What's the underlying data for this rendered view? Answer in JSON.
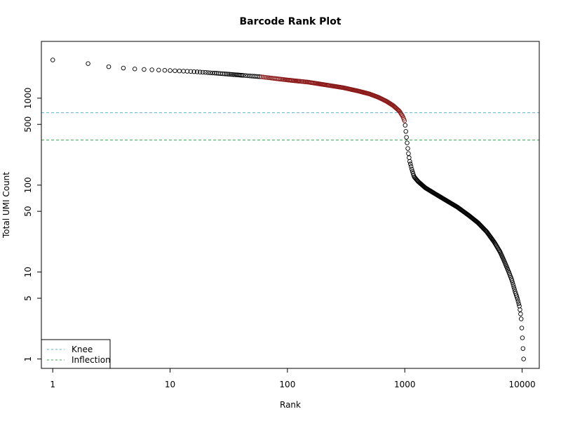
{
  "chart_data": {
    "type": "scatter",
    "title": "Barcode Rank Plot",
    "xlabel": "Rank",
    "ylabel": "Total UMI Count",
    "x_scale": "log",
    "y_scale": "log",
    "xlim": [
      0.8,
      14000
    ],
    "ylim": [
      0.78,
      4500
    ],
    "x_ticks": [
      1,
      10,
      100,
      1000,
      10000
    ],
    "x_tick_labels": [
      "1",
      "10",
      "100",
      "1000",
      "10000"
    ],
    "y_ticks": [
      1,
      5,
      10,
      50,
      100,
      500,
      1000
    ],
    "y_tick_labels": [
      "1",
      "5",
      "10",
      "50",
      "100",
      "500",
      "1000"
    ],
    "grid": false,
    "marker": "open-circle",
    "point_color": "#000000",
    "cell_barcode_color": "#8b1a1a",
    "cell_barcode_range": [
      60,
      1000
    ],
    "curve_points": [
      [
        1,
        2750
      ],
      [
        2,
        2500
      ],
      [
        3,
        2300
      ],
      [
        4,
        2220
      ],
      [
        5,
        2170
      ],
      [
        6,
        2140
      ],
      [
        7,
        2120
      ],
      [
        10,
        2080
      ],
      [
        15,
        2030
      ],
      [
        20,
        1980
      ],
      [
        30,
        1900
      ],
      [
        40,
        1840
      ],
      [
        60,
        1760
      ],
      [
        100,
        1620
      ],
      [
        150,
        1530
      ],
      [
        200,
        1440
      ],
      [
        300,
        1320
      ],
      [
        400,
        1210
      ],
      [
        500,
        1120
      ],
      [
        600,
        1020
      ],
      [
        700,
        920
      ],
      [
        800,
        820
      ],
      [
        900,
        710
      ],
      [
        960,
        620
      ],
      [
        1000,
        540
      ],
      [
        1020,
        420
      ],
      [
        1040,
        330
      ],
      [
        1070,
        240
      ],
      [
        1100,
        190
      ],
      [
        1150,
        150
      ],
      [
        1200,
        125
      ],
      [
        1300,
        110
      ],
      [
        1500,
        93
      ],
      [
        1800,
        80
      ],
      [
        2200,
        68
      ],
      [
        2800,
        56
      ],
      [
        3500,
        45
      ],
      [
        4200,
        37
      ],
      [
        5000,
        29
      ],
      [
        5800,
        22
      ],
      [
        6500,
        17
      ],
      [
        7100,
        13
      ],
      [
        7700,
        10
      ],
      [
        8200,
        8
      ],
      [
        8700,
        6
      ],
      [
        9100,
        5
      ],
      [
        9500,
        4
      ],
      [
        9800,
        3
      ],
      [
        10000,
        2
      ],
      [
        10300,
        1
      ]
    ],
    "thresholds": [
      {
        "name": "Knee",
        "value": 680,
        "color": "#5ab4d6",
        "dash": "4,3"
      },
      {
        "name": "Inflection",
        "value": 330,
        "color": "#3aa84a",
        "dash": "4,3"
      }
    ],
    "legend": {
      "position": "bottom-left",
      "entries": [
        {
          "label": "Knee",
          "color": "#5ab4d6"
        },
        {
          "label": "Inflection",
          "color": "#3aa84a"
        }
      ]
    }
  }
}
